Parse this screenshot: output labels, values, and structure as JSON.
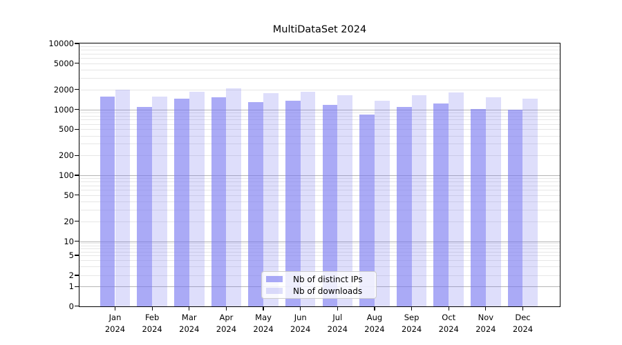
{
  "title": "MultiDataSet 2024",
  "chart_data": {
    "type": "bar",
    "title": "MultiDataSet 2024",
    "categories": [
      "Jan",
      "Feb",
      "Mar",
      "Apr",
      "May",
      "Jun",
      "Jul",
      "Aug",
      "Sep",
      "Oct",
      "Nov",
      "Dec"
    ],
    "category_year": "2024",
    "series": [
      {
        "name": "Nb of distinct IPs",
        "values": [
          1550,
          1100,
          1450,
          1520,
          1300,
          1350,
          1170,
          840,
          1100,
          1240,
          1010,
          1000
        ],
        "color": "rgba(118,118,240,0.62)"
      },
      {
        "name": "Nb of downloads",
        "values": [
          2000,
          1550,
          1850,
          2080,
          1750,
          1870,
          1650,
          1350,
          1640,
          1800,
          1520,
          1460
        ],
        "color": "rgba(118,118,240,0.24)"
      }
    ],
    "yscale": "symlog",
    "ylim": [
      0,
      10000
    ],
    "ytick_labels": [
      "10000",
      "5000",
      "2000",
      "1000",
      "500",
      "200",
      "100",
      "50",
      "20",
      "10",
      "5",
      "2",
      "1",
      "0"
    ],
    "grid": true,
    "legend_position": "lower center"
  },
  "legend": {
    "items": [
      {
        "label": "Nb of distinct IPs"
      },
      {
        "label": "Nb of downloads"
      }
    ]
  },
  "colors": {
    "bar_ips": "rgba(118,118,240,0.62)",
    "bar_downloads": "rgba(118,118,240,0.24)",
    "grid_major": "#b5b5b5",
    "grid_minor": "#e6e6e6",
    "spine": "#000000",
    "legend_border": "#cccccc",
    "legend_bg": "rgba(255,255,255,0.8)",
    "text": "#000000",
    "background": "#ffffff"
  }
}
